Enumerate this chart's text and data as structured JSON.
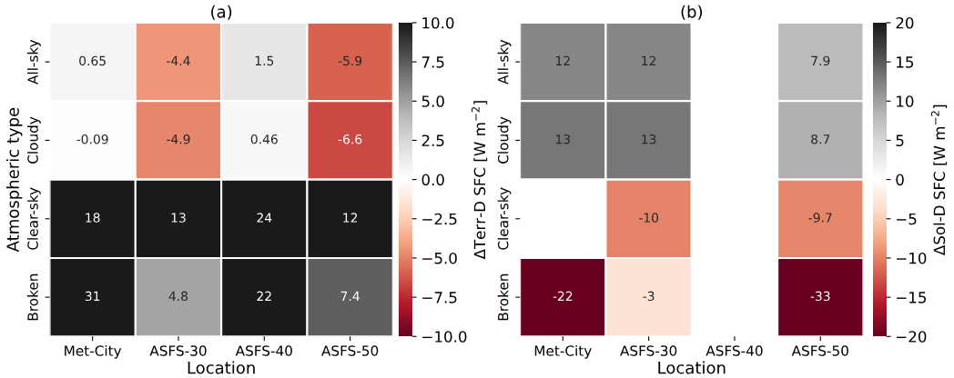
{
  "chart_data": [
    {
      "type": "heatmap",
      "title": "(a)",
      "xlabel": "Location",
      "ylabel": "Atmospheric type",
      "clabel": "ΔTerr-D SFC [W m$^{−2}$]",
      "categories": [
        "Met-City",
        "ASFS-30",
        "ASFS-40",
        "ASFS-50"
      ],
      "y_categories": [
        "All-sky",
        "Cloudy",
        "Clear-sky",
        "Broken"
      ],
      "cells": [
        [
          0.65,
          -4.4,
          1.5,
          -5.9
        ],
        [
          -0.09,
          -4.9,
          0.46,
          -6.6
        ],
        [
          18,
          13,
          24,
          12
        ],
        [
          31,
          4.8,
          22,
          7.4
        ]
      ],
      "clim": [
        -10,
        10
      ],
      "cticks": [
        {
          "value": -10,
          "label": "−10.0"
        },
        {
          "value": -7.5,
          "label": "−7.5"
        },
        {
          "value": -5,
          "label": "−5.0"
        },
        {
          "value": -2.5,
          "label": "−2.5"
        },
        {
          "value": 0,
          "label": "0.0"
        },
        {
          "value": 2.5,
          "label": "2.5"
        },
        {
          "value": 5,
          "label": "5.0"
        },
        {
          "value": 7.5,
          "label": "7.5"
        },
        {
          "value": 10,
          "label": "10.0"
        }
      ],
      "data_labels": true
    },
    {
      "type": "heatmap",
      "title": "(b)",
      "xlabel": "Location",
      "clabel": "ΔSol-D SFC [W m$^{−2}$]",
      "categories": [
        "Met-City",
        "ASFS-30",
        "ASFS-40",
        "ASFS-50"
      ],
      "y_categories": [
        "All-sky",
        "Cloudy",
        "Clear-sky",
        "Broken"
      ],
      "cells": [
        [
          12,
          12,
          null,
          7.9
        ],
        [
          13,
          13,
          null,
          8.7
        ],
        [
          null,
          -10,
          null,
          -9.7
        ],
        [
          -22,
          -3,
          null,
          -33
        ]
      ],
      "clim": [
        -20,
        20
      ],
      "cticks": [
        {
          "value": -20,
          "label": "−20"
        },
        {
          "value": -15,
          "label": "−15"
        },
        {
          "value": -10,
          "label": "−10"
        },
        {
          "value": -5,
          "label": "−5"
        },
        0,
        5,
        10,
        15,
        20
      ],
      "data_labels": true
    }
  ]
}
